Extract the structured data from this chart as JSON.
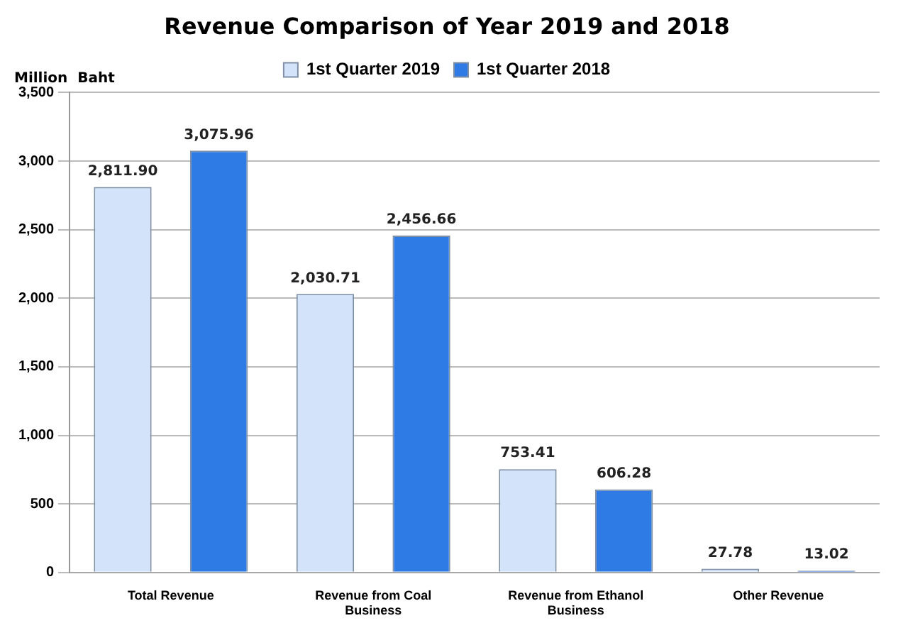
{
  "chart_data": {
    "type": "bar",
    "title": "Revenue Comparison of Year 2019 and 2018",
    "ylabel": "Million  Baht",
    "categories": [
      "Total Revenue",
      "Revenue from Coal Business",
      "Revenue from Ethanol Business",
      "Other Revenue"
    ],
    "series": [
      {
        "name": "1st Quarter 2019",
        "color": "#d3e4fa",
        "values": [
          2811.9,
          2030.71,
          753.41,
          27.78
        ],
        "value_labels": [
          "2,811.90",
          "2,030.71",
          "753.41",
          "27.78"
        ]
      },
      {
        "name": "1st Quarter 2018",
        "color": "#2f7be6",
        "values": [
          3075.96,
          2456.66,
          606.28,
          13.02
        ],
        "value_labels": [
          "3,075.96",
          "2,456.66",
          "606.28",
          "13.02"
        ]
      }
    ],
    "ylim": [
      0,
      3500
    ],
    "yticks": [
      {
        "value": 0,
        "label": "0"
      },
      {
        "value": 500,
        "label": "500"
      },
      {
        "value": 1000,
        "label": "1,000"
      },
      {
        "value": 1500,
        "label": "1,500"
      },
      {
        "value": 2000,
        "label": "2,000"
      },
      {
        "value": 2500,
        "label": "2,500"
      },
      {
        "value": 3000,
        "label": "3,000"
      },
      {
        "value": 3500,
        "label": "3,500"
      }
    ],
    "grid": "y",
    "legend": "top"
  }
}
